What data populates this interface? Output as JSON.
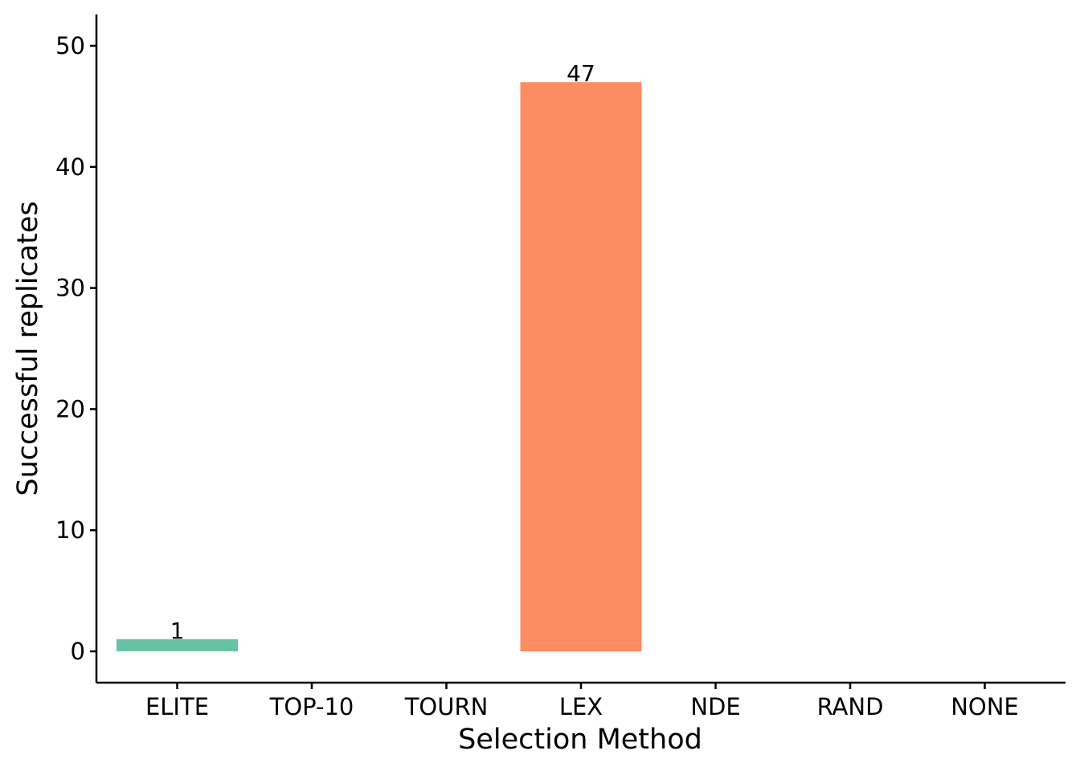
{
  "chart_data": {
    "type": "bar",
    "title": "",
    "xlabel": "Selection Method",
    "ylabel": "Successful replicates",
    "categories": [
      "ELITE",
      "TOP-10",
      "TOURN",
      "LEX",
      "NDE",
      "RAND",
      "NONE"
    ],
    "values": [
      1,
      null,
      null,
      47,
      null,
      null,
      null
    ],
    "data_labels": [
      "1",
      "",
      "",
      "47",
      "",
      "",
      ""
    ],
    "colors": [
      "#66c2a5",
      "#fc8d62",
      "#8da0cb",
      "#fc8d62",
      "#a6d854",
      "#ffd92f",
      "#e5c494"
    ],
    "ylim": [
      -2.5,
      52.5
    ],
    "yticks": [
      0,
      10,
      20,
      30,
      40,
      50
    ],
    "grid": false,
    "legend": "none"
  }
}
